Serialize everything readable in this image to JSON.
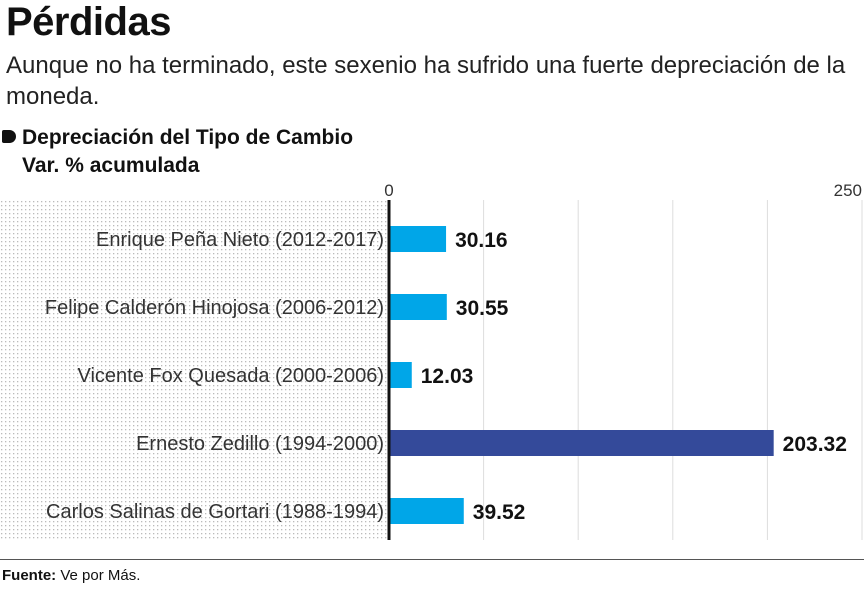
{
  "header": {
    "title": "Pérdidas",
    "subtitle": "Aunque no ha terminado, este sexenio ha sufrido una fuerte depreciación de la moneda."
  },
  "chart_data": {
    "type": "bar",
    "orientation": "horizontal",
    "series_label": "Depreciación del Tipo de Cambio",
    "series_sublabel": "Var. % acumulada",
    "categories": [
      "Enrique Peña Nieto (2012-2017)",
      "Felipe Calderón Hinojosa (2006-2012)",
      "Vicente Fox Quesada (2000-2006)",
      "Ernesto Zedillo (1994-2000)",
      "Carlos Salinas de Gortari (1988-1994)"
    ],
    "values": [
      30.16,
      30.55,
      12.03,
      203.32,
      39.52
    ],
    "value_labels": [
      "30.16",
      "30.55",
      "12.03",
      "203.32",
      "39.52"
    ],
    "xlim": [
      0,
      250
    ],
    "xticks": [
      "0",
      "250"
    ],
    "grid": true,
    "colors": {
      "bar": "#00A6E8",
      "highlight": "#344A9A",
      "axis": "#111111",
      "grid": "#DDDDDD",
      "dots": "#BBBBBB"
    },
    "highlight_index": 3
  },
  "footer": {
    "source_label": "Fuente:",
    "source_text": "Ve por Más."
  }
}
